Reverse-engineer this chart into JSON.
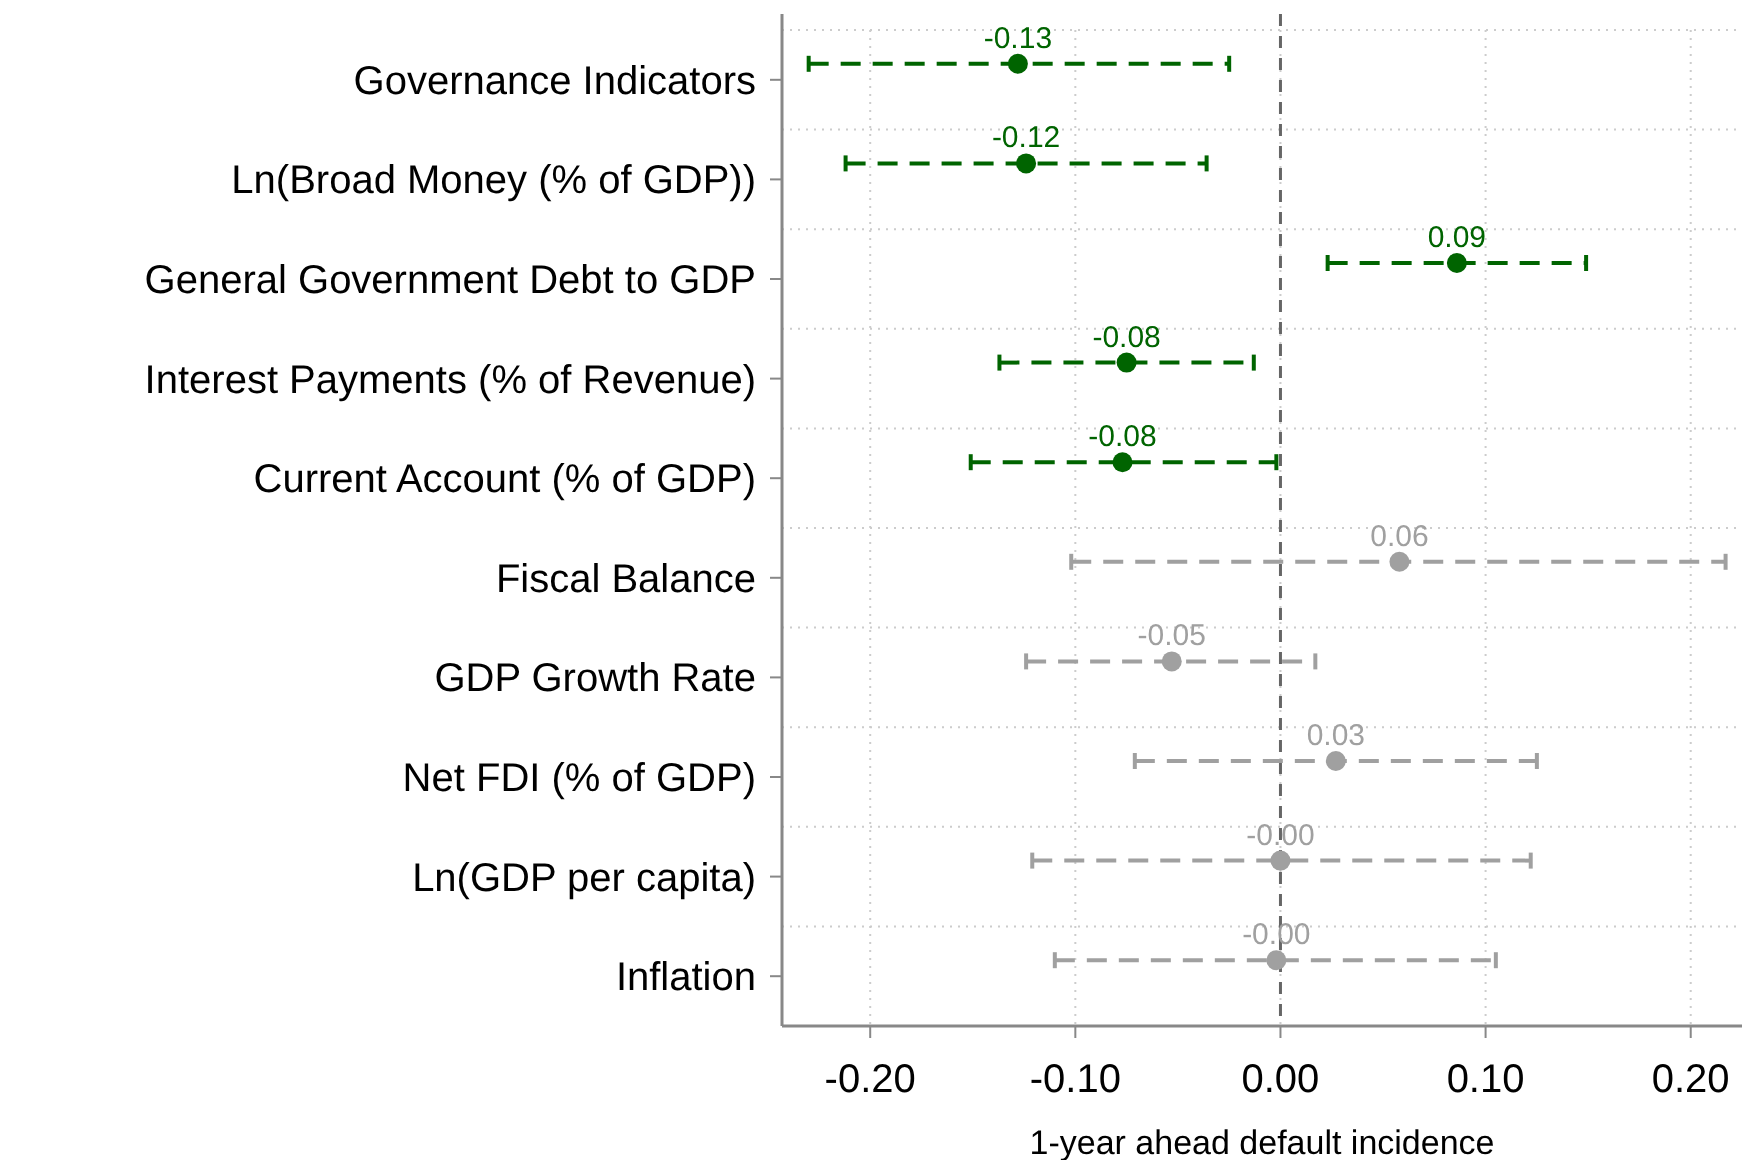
{
  "chart_data": {
    "type": "scatter",
    "orientation": "horizontal",
    "xlabel": "1-year ahead default incidence",
    "categories": [
      "Governance Indicators",
      "Ln(Broad Money (% of GDP))",
      "General Government Debt to GDP",
      "Interest Payments (% of Revenue)",
      "Current Account (% of GDP)",
      "Fiscal Balance",
      "GDP Growth Rate",
      "Net FDI (% of GDP)",
      "Ln(GDP per capita)",
      "Inflation"
    ],
    "series": [
      {
        "color": "#006400",
        "values": [
          -0.128,
          -0.124,
          0.086,
          -0.075,
          -0.077,
          null,
          null,
          null,
          null,
          null
        ],
        "errors": [
          [
            -0.23,
            -0.025
          ],
          [
            -0.212,
            -0.036
          ],
          [
            0.023,
            0.149
          ],
          [
            -0.137,
            -0.013
          ],
          [
            -0.151,
            -0.002
          ],
          null,
          null,
          null,
          null,
          null
        ],
        "value_labels": [
          "-0.13",
          "-0.12",
          "0.09",
          "-0.08",
          "-0.08",
          null,
          null,
          null,
          null,
          null
        ]
      },
      {
        "color": "#a0a0a0",
        "values": [
          null,
          null,
          null,
          null,
          null,
          0.058,
          -0.053,
          0.027,
          0.0,
          -0.002
        ],
        "errors": [
          null,
          null,
          null,
          null,
          null,
          [
            -0.102,
            0.217
          ],
          [
            -0.124,
            0.017
          ],
          [
            -0.071,
            0.125
          ],
          [
            -0.121,
            0.122
          ],
          [
            -0.11,
            0.105
          ]
        ],
        "value_labels": [
          null,
          null,
          null,
          null,
          null,
          "0.06",
          "-0.05",
          "0.03",
          "-0.00",
          "-0.00"
        ]
      }
    ],
    "xlim": [
      -0.243,
      0.225
    ],
    "xticks": [
      {
        "value": -0.2,
        "label": "-0.20"
      },
      {
        "value": -0.1,
        "label": "-0.10"
      },
      {
        "value": 0,
        "label": "0.00"
      },
      {
        "value": 0.1,
        "label": "0.10"
      },
      {
        "value": 0.2,
        "label": "0.20"
      }
    ],
    "ref_lines": [
      {
        "axis": "x",
        "value": 0,
        "color": "#666666",
        "line_style": "dashed"
      }
    ],
    "grid": true,
    "marker": "circle"
  }
}
